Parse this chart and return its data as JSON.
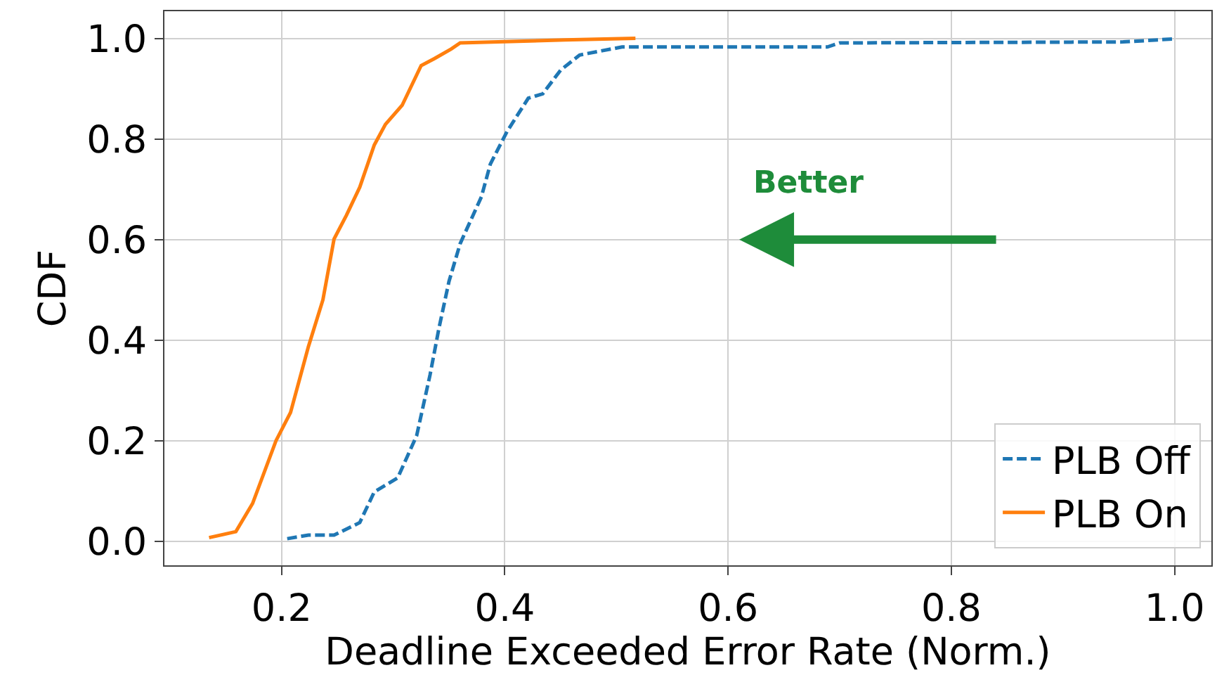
{
  "chart_data": {
    "type": "line",
    "xlabel": "Deadline Exceeded Error Rate (Norm.)",
    "ylabel": "CDF",
    "xlim": [
      0.095,
      1.033
    ],
    "ylim": [
      -0.048,
      1.054
    ],
    "xticks": [
      0.2,
      0.4,
      0.6,
      0.8,
      {
        "value": 1,
        "label": "1.0"
      }
    ],
    "yticks": [
      {
        "value": 0,
        "label": "0.0"
      },
      0.2,
      0.4,
      0.6,
      0.8,
      {
        "value": 1,
        "label": "1.0"
      }
    ],
    "grid": true,
    "legend": "bottom right",
    "marker": "none",
    "annotations": [
      "Better"
    ],
    "series": [
      {
        "name": "PLB Off",
        "color": "#1f77b4",
        "line_style": "dashed",
        "x": [
          0.205,
          0.224,
          0.247,
          0.27,
          0.283,
          0.304,
          0.321,
          0.333,
          0.341,
          0.35,
          0.36,
          0.379,
          0.387,
          0.402,
          0.421,
          0.434,
          0.45,
          0.467,
          0.505,
          0.689,
          0.7,
          0.954,
          1.0
        ],
        "values": [
          0.005,
          0.012,
          0.012,
          0.037,
          0.098,
          0.126,
          0.21,
          0.331,
          0.424,
          0.517,
          0.592,
          0.685,
          0.75,
          0.815,
          0.881,
          0.89,
          0.937,
          0.967,
          0.983,
          0.983,
          0.991,
          0.993,
          0.999
        ]
      },
      {
        "name": "PLB On",
        "color": "#ff7f0e",
        "line_style": "solid",
        "x": [
          0.135,
          0.159,
          0.174,
          0.195,
          0.208,
          0.224,
          0.237,
          0.247,
          0.258,
          0.27,
          0.283,
          0.293,
          0.308,
          0.325,
          0.337,
          0.352,
          0.36,
          0.454,
          0.517
        ],
        "values": [
          0.007,
          0.019,
          0.075,
          0.2,
          0.256,
          0.387,
          0.48,
          0.601,
          0.648,
          0.704,
          0.788,
          0.829,
          0.867,
          0.946,
          0.96,
          0.979,
          0.991,
          0.997,
          1.0
        ]
      }
    ]
  }
}
